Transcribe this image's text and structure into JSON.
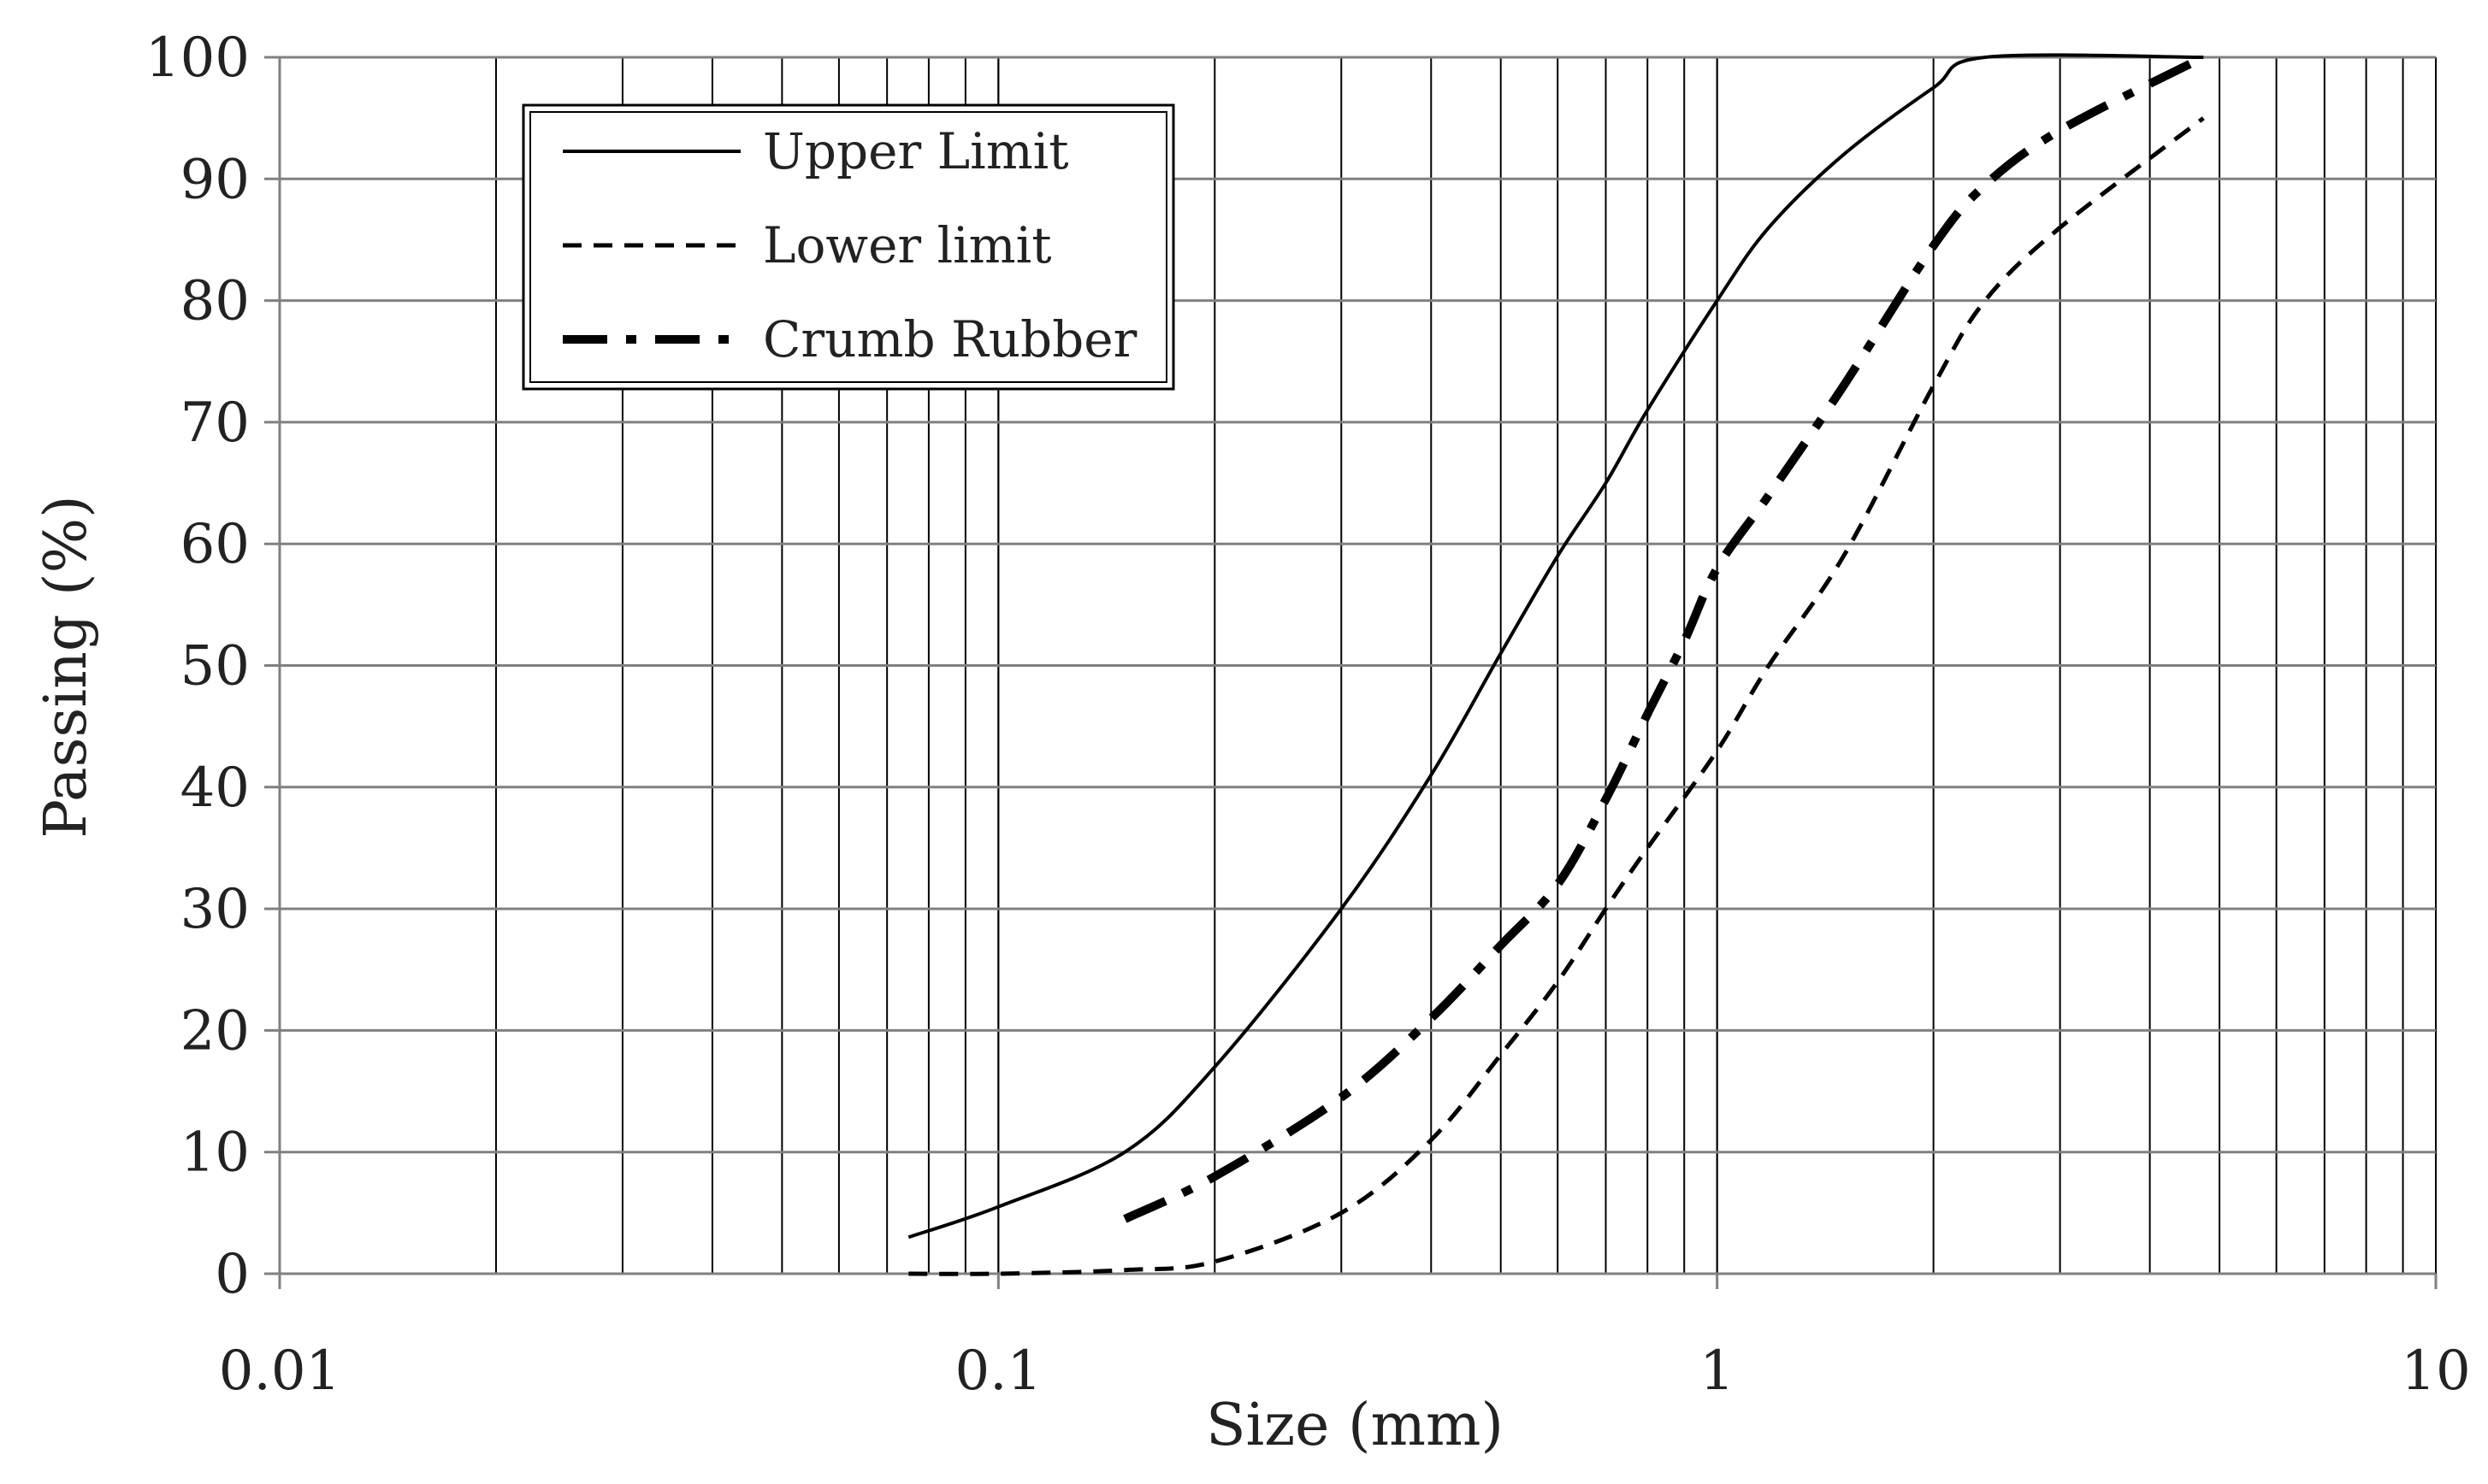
{
  "chart_data": {
    "type": "line",
    "title": "",
    "xlabel": "Size (mm)",
    "ylabel": "Passing (%)",
    "x_scale": "log",
    "xlim": [
      0.01,
      10
    ],
    "ylim": [
      0,
      100
    ],
    "x_ticks": [
      "0.01",
      "0.1",
      "1",
      "10"
    ],
    "y_ticks": [
      "0",
      "10",
      "20",
      "30",
      "40",
      "50",
      "60",
      "70",
      "80",
      "90",
      "100"
    ],
    "grid": {
      "vertical": "log-minor",
      "horizontal": "major"
    },
    "legend_position": "top-left",
    "colors": {
      "lines": "#000000",
      "grid": "#808080",
      "vgrid": "#000000",
      "background": "#ffffff"
    },
    "series": [
      {
        "name": "Upper Limit",
        "style": "solid",
        "points": [
          [
            0.075,
            3
          ],
          [
            0.1,
            5.5
          ],
          [
            0.15,
            10
          ],
          [
            0.2,
            17
          ],
          [
            0.3,
            30
          ],
          [
            0.4,
            41
          ],
          [
            0.5,
            51
          ],
          [
            0.6,
            59
          ],
          [
            0.7,
            65
          ],
          [
            0.8,
            71
          ],
          [
            1,
            80
          ],
          [
            1.18,
            86
          ],
          [
            1.5,
            92
          ],
          [
            2,
            97.5
          ],
          [
            2.36,
            100
          ],
          [
            4.75,
            100
          ]
        ]
      },
      {
        "name": "Lower limit",
        "style": "dashed",
        "points": [
          [
            0.075,
            0
          ],
          [
            0.1,
            0
          ],
          [
            0.15,
            0.3
          ],
          [
            0.2,
            1
          ],
          [
            0.3,
            5
          ],
          [
            0.4,
            11
          ],
          [
            0.5,
            18
          ],
          [
            0.6,
            24
          ],
          [
            0.7,
            30
          ],
          [
            0.8,
            35
          ],
          [
            1,
            43
          ],
          [
            1.18,
            50
          ],
          [
            1.5,
            59
          ],
          [
            2,
            73
          ],
          [
            2.36,
            80
          ],
          [
            3,
            86
          ],
          [
            4.75,
            95
          ]
        ]
      },
      {
        "name": "Crumb Rubber",
        "style": "dash-dot",
        "points": [
          [
            0.15,
            4.5
          ],
          [
            0.2,
            8
          ],
          [
            0.3,
            14.5
          ],
          [
            0.4,
            21
          ],
          [
            0.5,
            27
          ],
          [
            0.6,
            32
          ],
          [
            0.7,
            39
          ],
          [
            0.8,
            46
          ],
          [
            0.9,
            52
          ],
          [
            1,
            58
          ],
          [
            1.18,
            64
          ],
          [
            1.5,
            73
          ],
          [
            2,
            84.5
          ],
          [
            2.36,
            89.5
          ],
          [
            3,
            94
          ],
          [
            4.75,
            100
          ]
        ]
      }
    ]
  }
}
